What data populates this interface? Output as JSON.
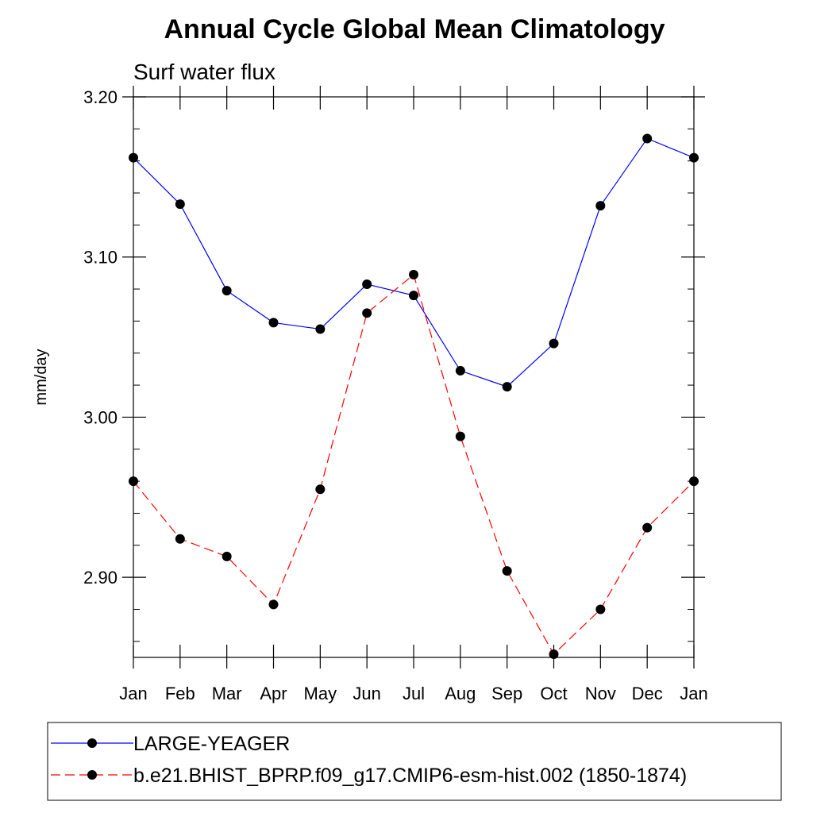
{
  "chart_data": {
    "type": "line",
    "title": "Annual Cycle Global Mean Climatology",
    "subtitle": "Surf water flux",
    "ylabel": "mm/day",
    "xlabel": "",
    "categories": [
      "Jan",
      "Feb",
      "Mar",
      "Apr",
      "May",
      "Jun",
      "Jul",
      "Aug",
      "Sep",
      "Oct",
      "Nov",
      "Dec",
      "Jan"
    ],
    "ylim": [
      2.85,
      3.2
    ],
    "yticks": [
      2.9,
      3.0,
      3.1,
      3.2
    ],
    "ytick_labels": [
      "2.90",
      "3.00",
      "3.10",
      "3.20"
    ],
    "yminor_step": 0.02,
    "grid": false,
    "legend_position": "bottom",
    "series": [
      {
        "name": "LARGE-YEAGER",
        "color": "#0000ff",
        "line_style": "solid",
        "marker": "filled-circle",
        "values": [
          3.162,
          3.133,
          3.079,
          3.059,
          3.055,
          3.083,
          3.076,
          3.029,
          3.019,
          3.046,
          3.132,
          3.174,
          3.162
        ]
      },
      {
        "name": "b.e21.BHIST_BPRP.f09_g17.CMIP6-esm-hist.002 (1850-1874)",
        "color": "#ff0000",
        "line_style": "dashed",
        "marker": "filled-circle",
        "values": [
          2.96,
          2.924,
          2.913,
          2.883,
          2.955,
          3.065,
          3.089,
          2.988,
          2.904,
          2.852,
          2.88,
          2.931,
          2.96
        ]
      }
    ]
  }
}
